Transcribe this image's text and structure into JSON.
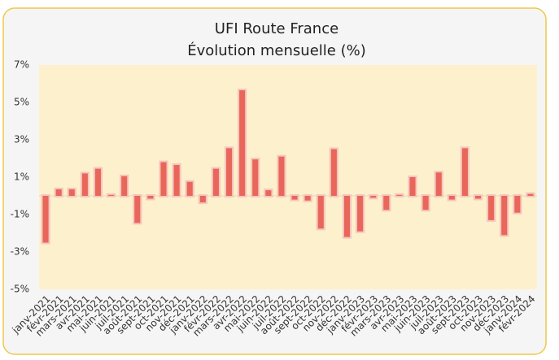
{
  "chart_data": {
    "type": "bar",
    "title": "UFI Route France",
    "subtitle": "Évolution mensuelle (%)",
    "categories": [
      "janv-2021",
      "févr-2021",
      "mars-2021",
      "avr-2021",
      "mai-2021",
      "juin-2021",
      "juil-2021",
      "août-2021",
      "sept-2021",
      "oct-2021",
      "nov-2021",
      "déc-2021",
      "janv-2022",
      "févr-2022",
      "mars-2022",
      "avr-2022",
      "mai-2022",
      "juin-2022",
      "juil-2022",
      "août-2022",
      "sept-2022",
      "oct-2022",
      "nov-2022",
      "déc-2022",
      "janv-2023",
      "févr-2023",
      "mars-2023",
      "avr-2023",
      "mai-2023",
      "juin-2023",
      "juil-2023",
      "août-2023",
      "sept-2023",
      "oct-2023",
      "nov-2023",
      "déc-2023",
      "janv-2024",
      "févr-2024"
    ],
    "values": [
      -2.5,
      0.35,
      0.35,
      1.2,
      1.45,
      0.05,
      1.05,
      -1.45,
      -0.15,
      1.8,
      1.65,
      0.75,
      -0.35,
      1.45,
      2.55,
      5.65,
      1.95,
      0.3,
      2.1,
      -0.2,
      -0.25,
      -1.75,
      2.5,
      -2.2,
      -1.9,
      -0.1,
      -0.75,
      0.05,
      1.0,
      -0.75,
      1.25,
      -0.2,
      2.55,
      -0.15,
      -1.3,
      -2.1,
      -0.9,
      0.1
    ],
    "color": "#e8675a",
    "ylim": [
      -5,
      7
    ],
    "yticks": [
      {
        "value": -5,
        "label": "-5%"
      },
      {
        "value": -3,
        "label": "-3%"
      },
      {
        "value": -1,
        "label": "-1%"
      },
      {
        "value": 1,
        "label": "1%"
      },
      {
        "value": 3,
        "label": "3%"
      },
      {
        "value": 5,
        "label": "5%"
      },
      {
        "value": 7,
        "label": "7%"
      }
    ],
    "grid": false
  }
}
